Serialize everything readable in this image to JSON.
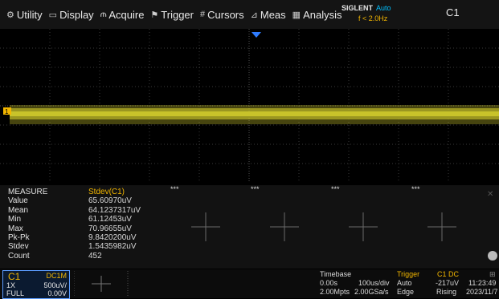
{
  "menu": {
    "items": [
      {
        "icon": "utility-icon",
        "glyph": "⚙",
        "label": "Utility"
      },
      {
        "icon": "display-icon",
        "glyph": "▭",
        "label": "Display"
      },
      {
        "icon": "acquire-icon",
        "glyph": "⫙",
        "label": "Acquire"
      },
      {
        "icon": "trigger-icon",
        "glyph": "⚑",
        "label": "Trigger"
      },
      {
        "icon": "cursors-icon",
        "glyph": "#",
        "label": "Cursors"
      },
      {
        "icon": "meas-icon",
        "glyph": "⊿",
        "label": "Meas"
      },
      {
        "icon": "analysis-icon",
        "glyph": "▦",
        "label": "Analysis"
      }
    ]
  },
  "status": {
    "brand": "SIGLENT",
    "mode": "Auto",
    "frequency": "f < 2.0Hz",
    "channel": "C1"
  },
  "waveform": {
    "channel_marker": "1",
    "color": "#c8c32a"
  },
  "measure": {
    "title": "MEASURE",
    "parameter": "Stdev(C1)",
    "rows": [
      {
        "label": "Value",
        "value": "65.60970uV"
      },
      {
        "label": "Mean",
        "value": "64.1237317uV"
      },
      {
        "label": "Min",
        "value": "61.12453uV"
      },
      {
        "label": "Max",
        "value": "70.96655uV"
      },
      {
        "label": "Pk-Pk",
        "value": "9.8420200uV"
      },
      {
        "label": "Stdev",
        "value": "1.5435982uV"
      },
      {
        "label": "Count",
        "value": "452"
      }
    ],
    "slots": [
      "***",
      "***",
      "***",
      "***"
    ]
  },
  "channel_box": {
    "name": "C1",
    "coupling": "DC1M",
    "probe": "1X",
    "scale": "500uV/",
    "bandwidth": "FULL",
    "offset": "0.00V"
  },
  "timebase": {
    "title": "Timebase",
    "delay": "0.00s",
    "scale": "100us/div",
    "memory": "2.00Mpts",
    "sample_rate": "2.00GSa/s"
  },
  "trigger": {
    "title": "Trigger",
    "source": "C1 DC",
    "mode": "Auto",
    "level": "-217uV",
    "type": "Edge",
    "slope": "Rising"
  },
  "clock": {
    "time": "11:23:49",
    "date": "2023/11/7"
  },
  "colors": {
    "channel1": "#f2b600",
    "accent": "#00c0ff",
    "panel_border": "#5b9cff"
  }
}
